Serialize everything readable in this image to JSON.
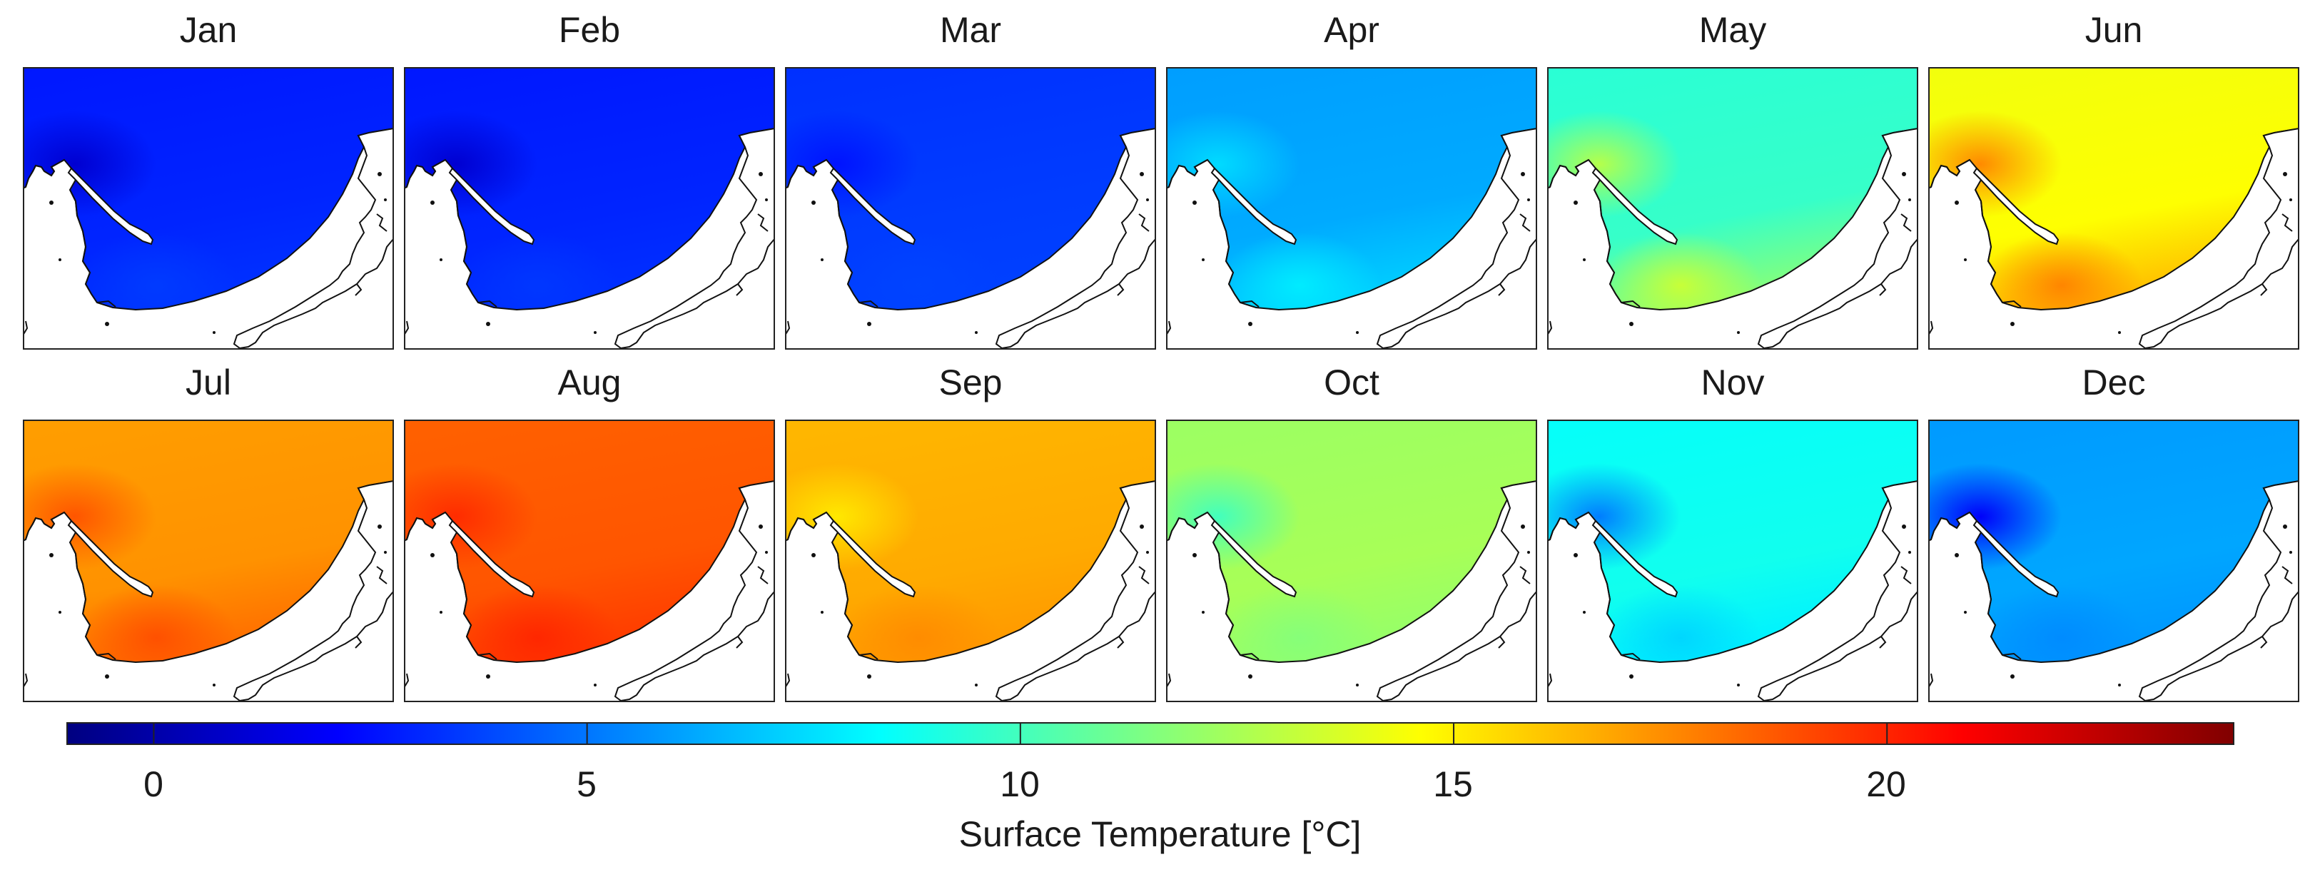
{
  "figure": {
    "panels": [
      {
        "month": "Jan",
        "base": 3.0,
        "near": 1.0,
        "south": 3.6
      },
      {
        "month": "Feb",
        "base": 3.0,
        "near": 1.0,
        "south": 3.5
      },
      {
        "month": "Mar",
        "base": 3.6,
        "near": 2.6,
        "south": 3.8
      },
      {
        "month": "Apr",
        "base": 6.3,
        "near": 7.5,
        "south": 8.0
      },
      {
        "month": "May",
        "base": 9.7,
        "near": 12.8,
        "south": 13.5
      },
      {
        "month": "Jun",
        "base": 14.6,
        "near": 17.5,
        "south": 17.8
      },
      {
        "month": "Jul",
        "base": 17.3,
        "near": 18.8,
        "south": 19.0
      },
      {
        "month": "Aug",
        "base": 18.8,
        "near": 19.8,
        "south": 20.0
      },
      {
        "month": "Sep",
        "base": 16.7,
        "near": 15.2,
        "south": 17.5
      },
      {
        "month": "Oct",
        "base": 12.5,
        "near": 10.0,
        "south": 11.6
      },
      {
        "month": "Nov",
        "base": 8.8,
        "near": 5.2,
        "south": 7.3
      },
      {
        "month": "Dec",
        "base": 6.2,
        "near": 2.0,
        "south": 5.5
      }
    ],
    "colorbar": {
      "label": "Surface Temperature [°C]",
      "min": -1,
      "max": 24,
      "ticks": [
        {
          "value": 0,
          "label": "0"
        },
        {
          "value": 5,
          "label": "5"
        },
        {
          "value": 10,
          "label": "10"
        },
        {
          "value": 15,
          "label": "15"
        },
        {
          "value": 20,
          "label": "20"
        }
      ]
    }
  }
}
